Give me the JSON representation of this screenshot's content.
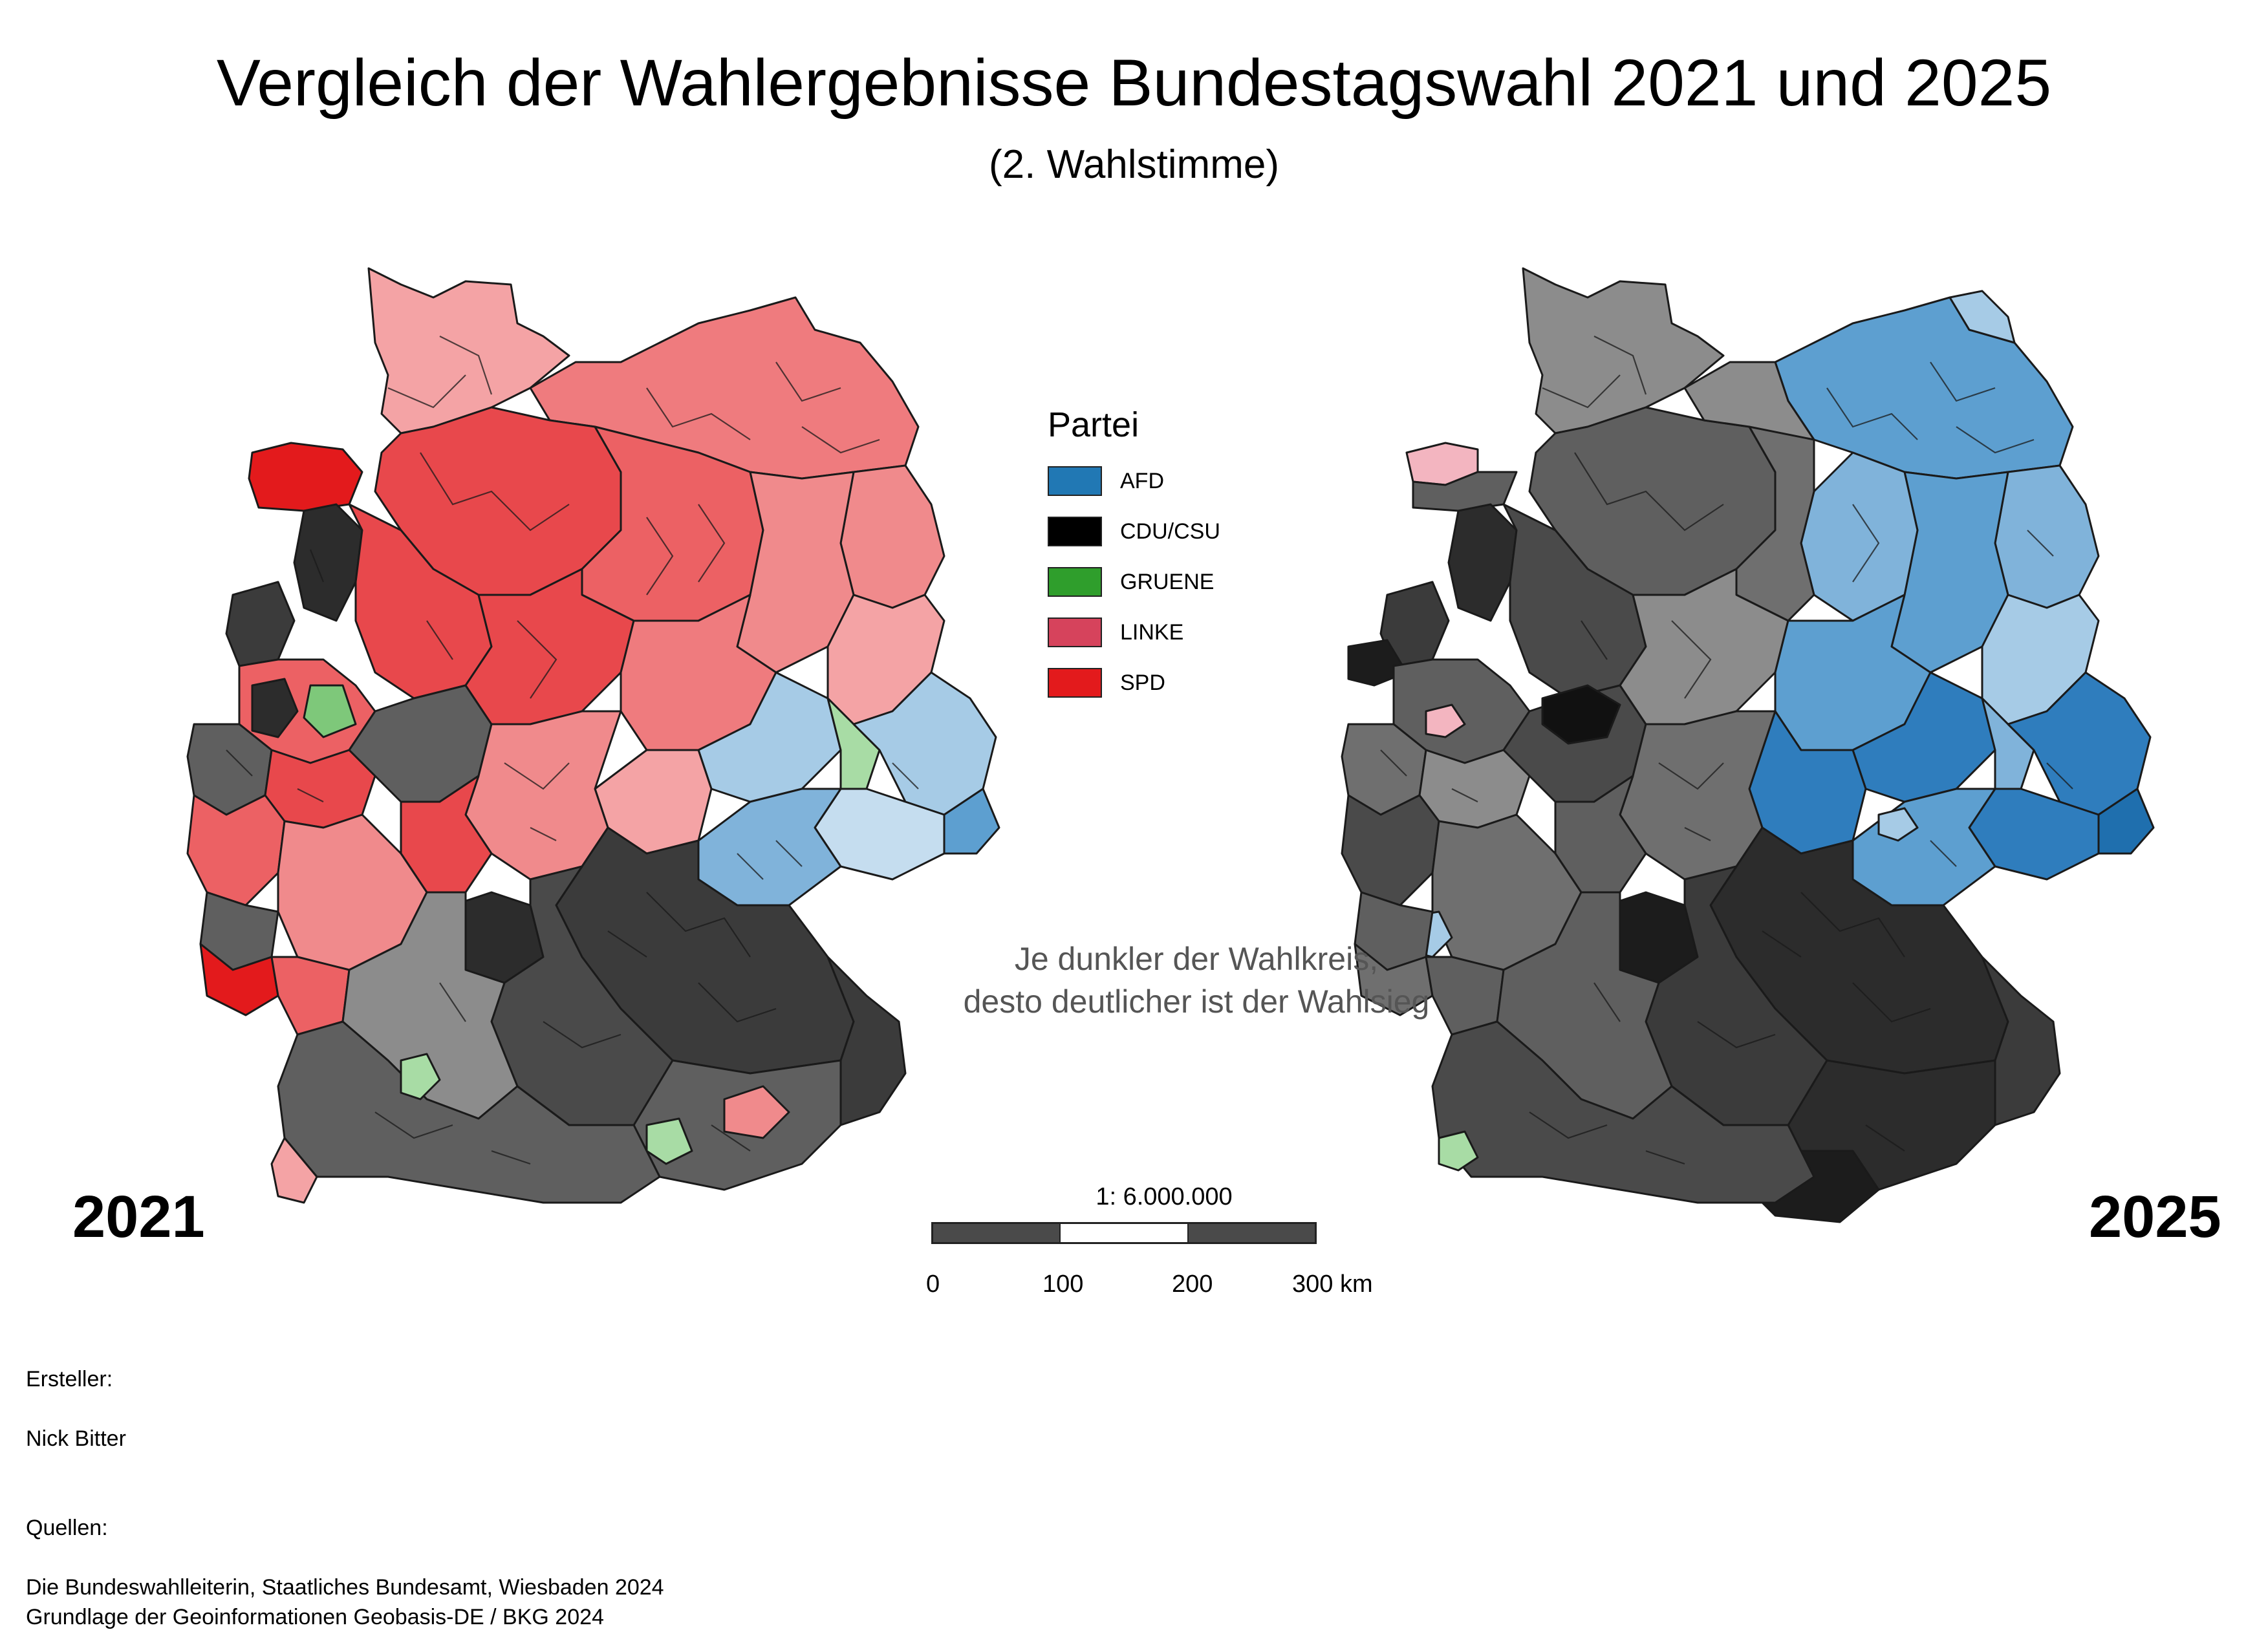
{
  "title": "Vergleich der Wahlergebnisse Bundestagswahl 2021 und 2025",
  "subtitle": "(2. Wahlstimme)",
  "legend": {
    "title": "Partei",
    "items": [
      {
        "label": "AFD",
        "color": "#2178b4"
      },
      {
        "label": "CDU/CSU",
        "color": "#000000"
      },
      {
        "label": "GRUENE",
        "color": "#2f9e2c"
      },
      {
        "label": "LINKE",
        "color": "#d6435c"
      },
      {
        "label": "SPD",
        "color": "#e31a1c"
      }
    ]
  },
  "note": "Je dunkler der Wahlkreis,\ndesto deutlicher ist der Wahlsieg",
  "maps": {
    "left_year": "2021",
    "right_year": "2025"
  },
  "scale": {
    "ratio": "1: 6.000.000",
    "ticks": [
      "0",
      "100",
      "200",
      "300 km"
    ]
  },
  "credits": {
    "creator_label": "Ersteller:",
    "creator": "Nick Bitter",
    "sources_label": "Quellen:",
    "source_1": "Die Bundeswahlleiterin, Staatliches Bundesamt, Wiesbaden 2024",
    "source_2": "Grundlage der Geoinformationen Geobasis-DE / BKG 2024"
  },
  "colors": {
    "spd_light": "#f4a3a5",
    "spd_mid": "#ef7b7e",
    "spd_dark": "#e8484c",
    "cdu_light": "#8c8c8c",
    "cdu_mid": "#5f5f5f",
    "cdu_dark": "#3b3b3b",
    "cdu_darkest": "#242424",
    "afd_light": "#a6cbe6",
    "afd_mid": "#5d9fd0",
    "afd_dark": "#2f7dbd",
    "gruene_light": "#a8dca5",
    "linke_light": "#f3b5c0"
  }
}
